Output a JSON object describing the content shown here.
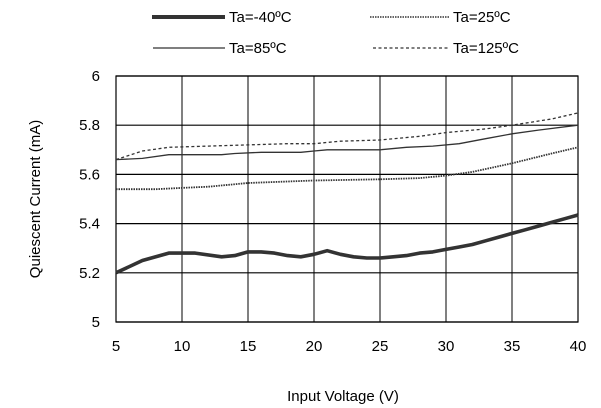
{
  "chart_data": {
    "type": "line",
    "xlabel": "Input Voltage (V)",
    "ylabel": "Quiescent Current (mA)",
    "xlim": [
      5,
      40
    ],
    "ylim": [
      5,
      6
    ],
    "x_ticks": [
      5,
      10,
      15,
      20,
      25,
      30,
      35,
      40
    ],
    "y_ticks": [
      5,
      5.2,
      5.4,
      5.6,
      5.8,
      6
    ],
    "x_tick_labels": [
      "5",
      "10",
      "15",
      "20",
      "25",
      "30",
      "35",
      "40"
    ],
    "y_tick_labels": [
      "5",
      "5.2",
      "5.4",
      "5.6",
      "5.8",
      "6"
    ],
    "grid": true,
    "legend_position": "top",
    "series": [
      {
        "name": "Ta=-40ºC",
        "style": "thick-solid",
        "color": "#333333",
        "x": [
          5,
          7,
          9,
          11,
          13,
          14,
          15,
          16,
          17,
          18,
          19,
          20,
          21,
          22,
          23,
          24,
          25,
          26,
          27,
          28,
          29,
          30,
          31,
          32,
          33,
          34,
          35,
          36,
          37,
          38,
          39,
          40
        ],
        "y": [
          5.2,
          5.25,
          5.28,
          5.28,
          5.265,
          5.27,
          5.285,
          5.285,
          5.28,
          5.27,
          5.265,
          5.275,
          5.29,
          5.275,
          5.265,
          5.26,
          5.26,
          5.265,
          5.27,
          5.28,
          5.285,
          5.295,
          5.305,
          5.315,
          5.33,
          5.345,
          5.36,
          5.375,
          5.39,
          5.405,
          5.42,
          5.435
        ]
      },
      {
        "name": "Ta=25ºC",
        "style": "wavy-dotted",
        "color": "#333333",
        "x": [
          5,
          8,
          10,
          12,
          15,
          20,
          25,
          28,
          30,
          32,
          35,
          38,
          40
        ],
        "y": [
          5.54,
          5.54,
          5.545,
          5.55,
          5.565,
          5.575,
          5.58,
          5.585,
          5.595,
          5.61,
          5.645,
          5.685,
          5.71
        ]
      },
      {
        "name": "Ta=85ºC",
        "style": "thin-solid",
        "color": "#333333",
        "x": [
          5,
          7,
          9,
          11,
          13,
          14,
          16,
          18,
          19,
          20,
          21,
          23,
          25,
          27,
          29,
          31,
          33,
          35,
          37,
          40
        ],
        "y": [
          5.66,
          5.665,
          5.68,
          5.68,
          5.68,
          5.685,
          5.69,
          5.69,
          5.69,
          5.695,
          5.7,
          5.7,
          5.7,
          5.71,
          5.715,
          5.725,
          5.745,
          5.765,
          5.78,
          5.8
        ]
      },
      {
        "name": "Ta=125ºC",
        "style": "dashed",
        "color": "#333333",
        "x": [
          5,
          7,
          9,
          12,
          15,
          18,
          20,
          22,
          25,
          28,
          30,
          33,
          35,
          38,
          40
        ],
        "y": [
          5.66,
          5.695,
          5.71,
          5.715,
          5.72,
          5.725,
          5.725,
          5.735,
          5.74,
          5.755,
          5.77,
          5.785,
          5.8,
          5.825,
          5.85
        ]
      }
    ]
  }
}
